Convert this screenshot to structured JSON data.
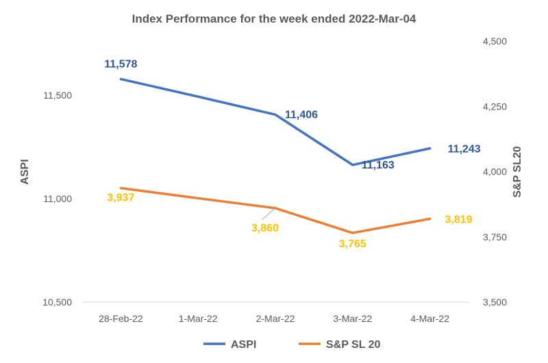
{
  "chart_data": {
    "type": "line",
    "title": "Index Performance for the week ended 2022-Mar-04",
    "categories": [
      "28-Feb-22",
      "1-Mar-22",
      "2-Mar-22",
      "3-Mar-22",
      "4-Mar-22"
    ],
    "series": [
      {
        "name": "ASPI",
        "axis": "left",
        "color": "#4472C4",
        "values": [
          11578,
          11493,
          11406,
          11163,
          11243
        ],
        "labels": [
          "11,578",
          null,
          "11,406",
          "11,163",
          "11,243"
        ],
        "label_color": "#2F5597"
      },
      {
        "name": "S&P SL 20",
        "axis": "right",
        "color": "#ED7D31",
        "values": [
          3937,
          3898,
          3860,
          3765,
          3819
        ],
        "labels": [
          "3,937",
          null,
          "3,860",
          "3,765",
          "3,819"
        ],
        "label_color": "#FFC000"
      }
    ],
    "y_left": {
      "label": "ASPI",
      "range": [
        10500,
        11750
      ],
      "ticks": [
        "10,500",
        "11,000",
        "11,500"
      ],
      "tick_values": [
        10500,
        11000,
        11500
      ]
    },
    "y_right": {
      "label": "S&P SL20",
      "range": [
        3500,
        4500
      ],
      "ticks": [
        "3,500",
        "3,750",
        "4,000",
        "4,250",
        "4,500"
      ],
      "tick_values": [
        3500,
        3750,
        4000,
        4250,
        4500
      ]
    },
    "grid": false,
    "legend": "bottom"
  }
}
